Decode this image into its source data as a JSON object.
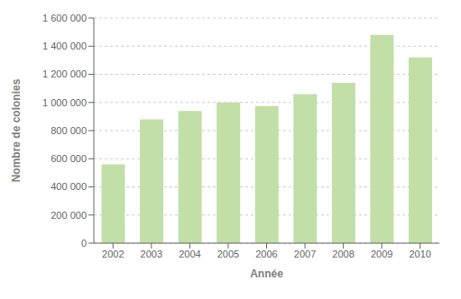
{
  "chart_data": {
    "type": "bar",
    "xlabel": "Année",
    "ylabel": "Nombre de colonies",
    "categories": [
      "2002",
      "2003",
      "2004",
      "2005",
      "2006",
      "2007",
      "2008",
      "2009",
      "2010"
    ],
    "values": [
      560000,
      880000,
      940000,
      1000000,
      975000,
      1060000,
      1140000,
      1480000,
      1320000
    ],
    "color": "#c2dfa8",
    "ylim": [
      0,
      1600000
    ],
    "yticks": [
      0,
      {
        "value": 200000,
        "label": "200 000"
      },
      {
        "value": 400000,
        "label": "400 000"
      },
      {
        "value": 600000,
        "label": "600 000"
      },
      {
        "value": 800000,
        "label": "800 000"
      },
      {
        "value": 1000000,
        "label": "1 000 000"
      },
      {
        "value": 1200000,
        "label": "1 200 000"
      },
      {
        "value": 1400000,
        "label": "1 400 000"
      },
      {
        "value": 1600000,
        "label": "1 600 000"
      }
    ],
    "grid": true
  }
}
